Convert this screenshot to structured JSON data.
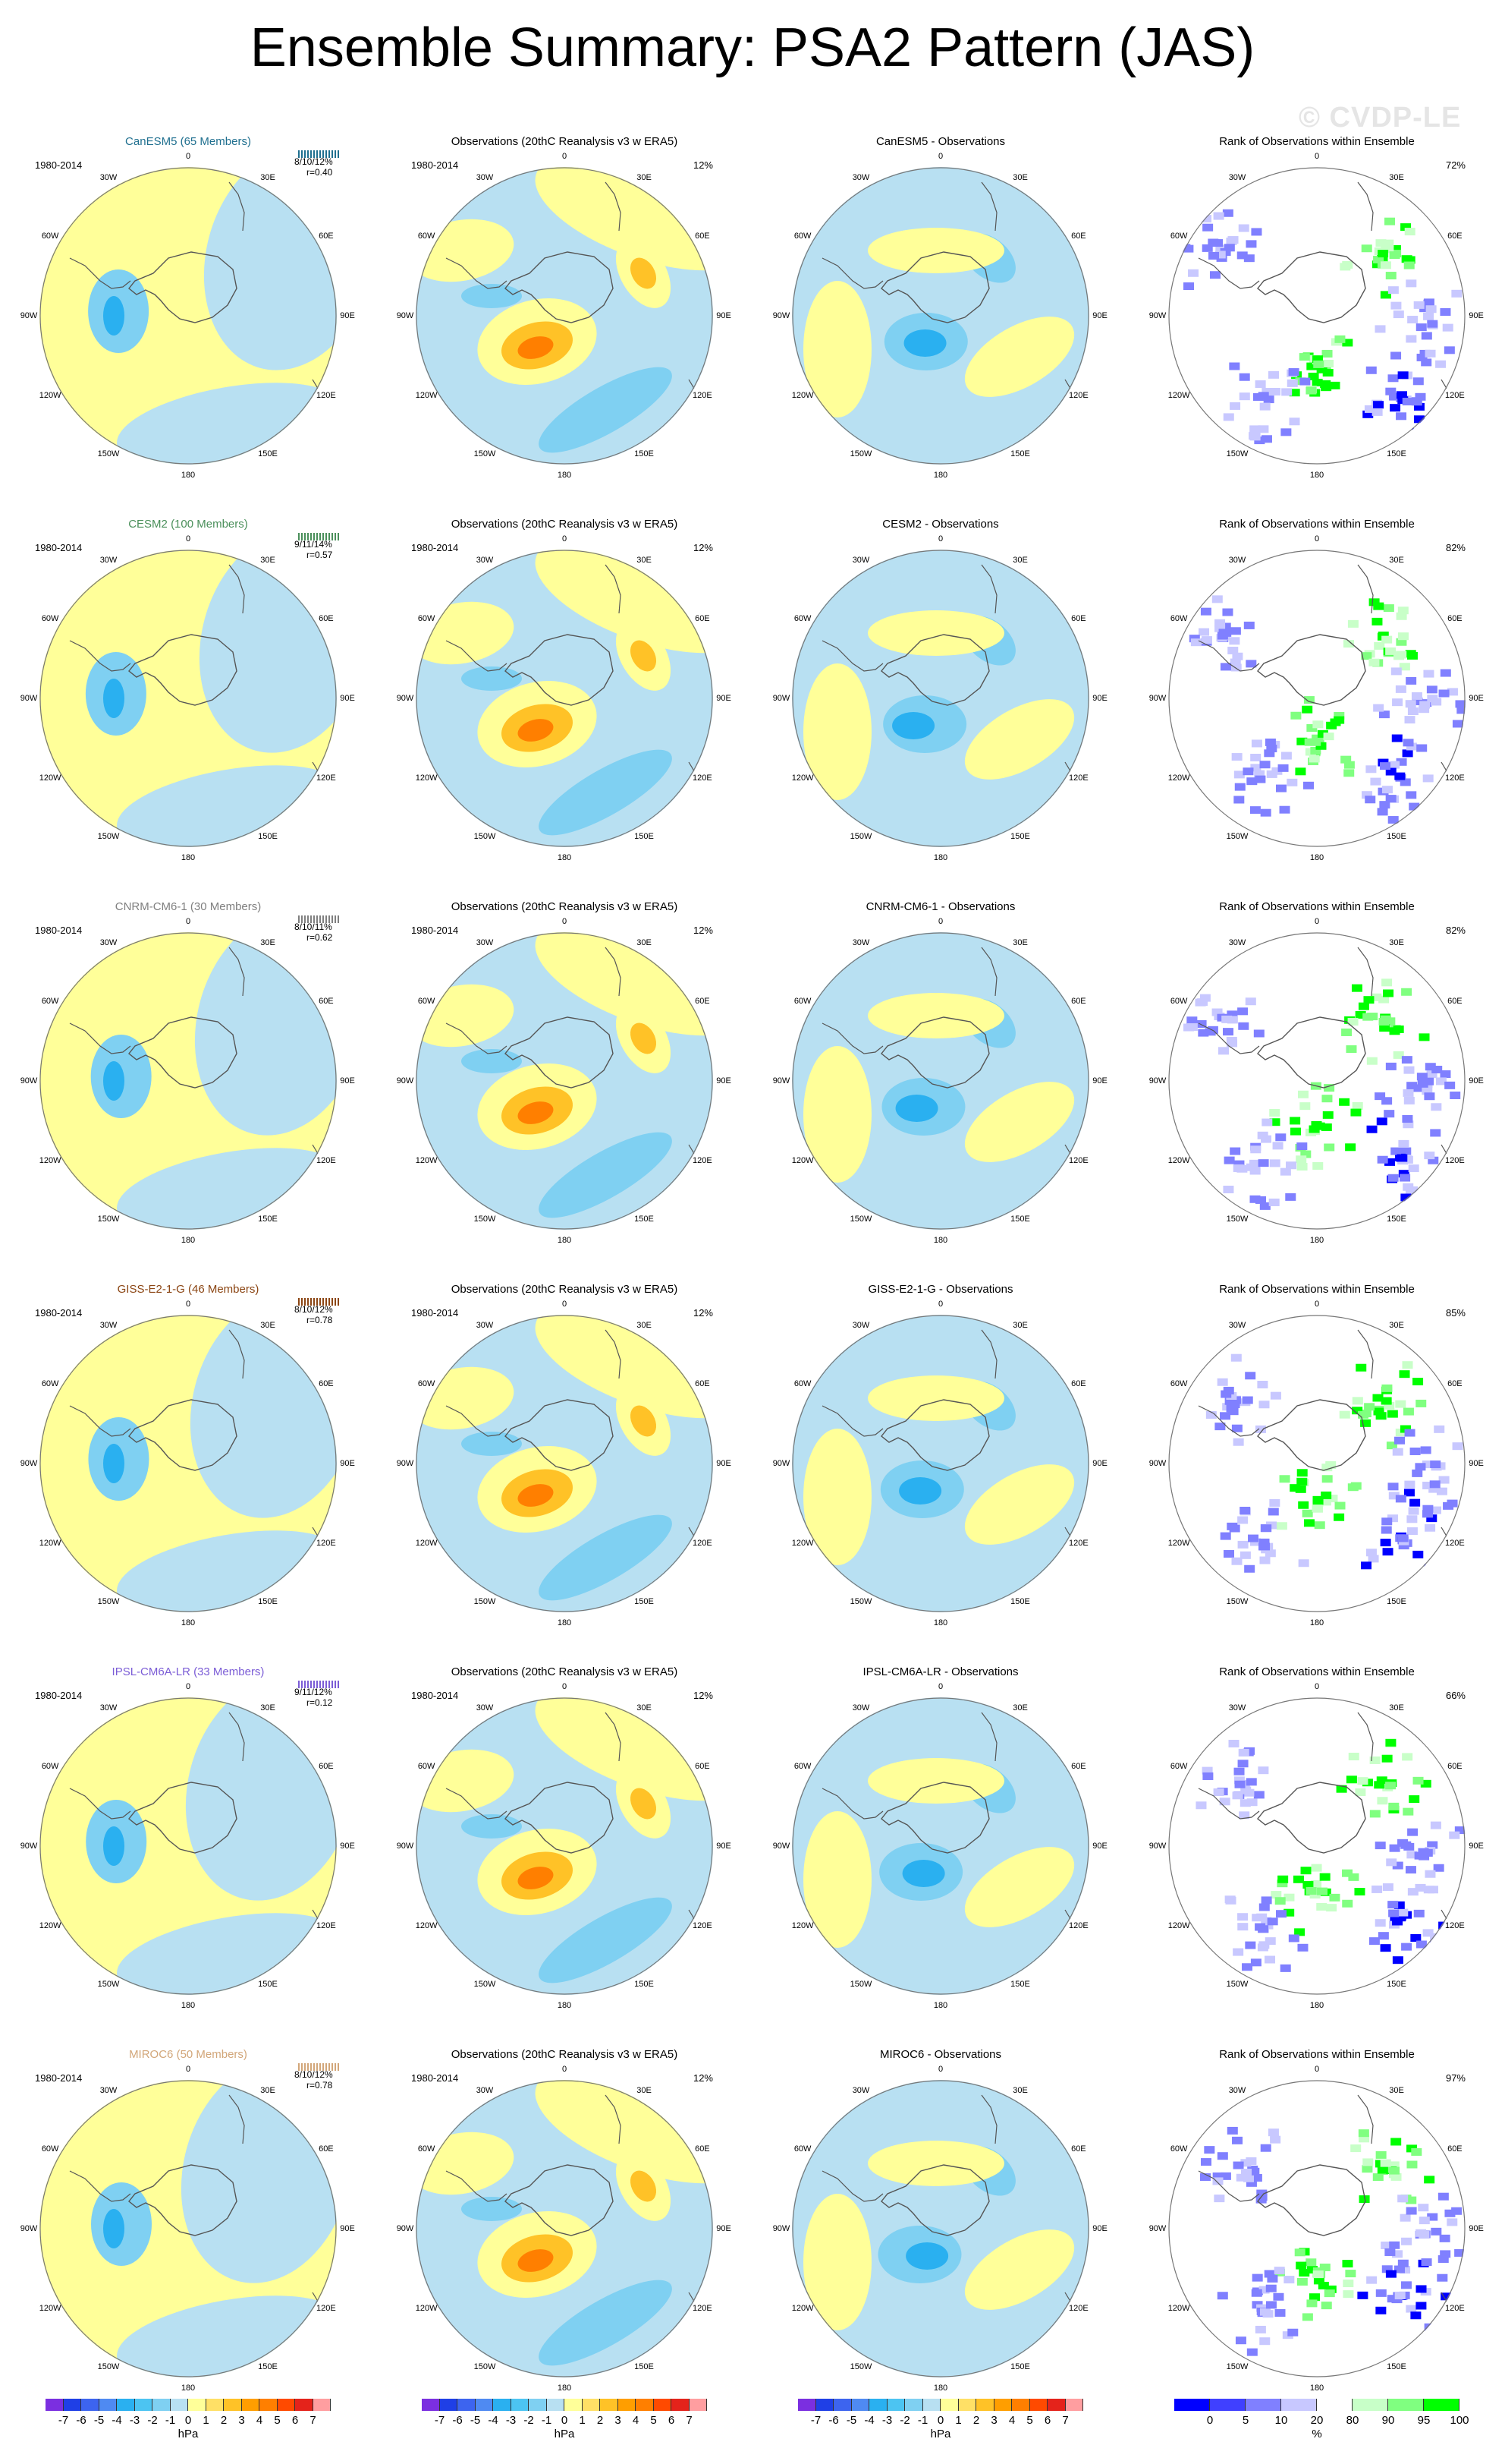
{
  "title": "Ensemble Summary: PSA2 Pattern (JAS)",
  "watermark": "© CVDP-LE",
  "period": "1980-2014",
  "obs_title": "Observations (20thC Reanalysis v3 w ERA5)",
  "rank_title": "Rank of Observations within Ensemble",
  "obs_pct": "12%",
  "longitude_labels": [
    "0",
    "30E",
    "60E",
    "90E",
    "120E",
    "150E",
    "180",
    "150W",
    "120W",
    "90W",
    "60W",
    "30W"
  ],
  "models": [
    {
      "label": "CanESM5 (65 Members)",
      "color": "#1f6f8f",
      "stats": "8/10/12%",
      "r": "r=0.40",
      "diff_title": "CanESM5 - Observations",
      "rank_pct": "72%"
    },
    {
      "label": "CESM2 (100 Members)",
      "color": "#4a8f5a",
      "stats": "9/11/14%",
      "r": "r=0.57",
      "diff_title": "CESM2 - Observations",
      "rank_pct": "82%"
    },
    {
      "label": "CNRM-CM6-1 (30 Members)",
      "color": "#7f7f7f",
      "stats": "8/10/11%",
      "r": "r=0.62",
      "diff_title": "CNRM-CM6-1 - Observations",
      "rank_pct": "82%"
    },
    {
      "label": "GISS-E2-1-G (46 Members)",
      "color": "#8b4513",
      "stats": "8/10/12%",
      "r": "r=0.78",
      "diff_title": "GISS-E2-1-G - Observations",
      "rank_pct": "85%"
    },
    {
      "label": "IPSL-CM6A-LR (33 Members)",
      "color": "#7b5cd6",
      "stats": "9/11/12%",
      "r": "r=0.12",
      "diff_title": "IPSL-CM6A-LR - Observations",
      "rank_pct": "66%"
    },
    {
      "label": "MIROC6 (50 Members)",
      "color": "#d2a679",
      "stats": "8/10/12%",
      "r": "r=0.78",
      "diff_title": "MIROC6 - Observations",
      "rank_pct": "97%"
    }
  ],
  "colorbar_hpa": {
    "ticks": [
      "-7",
      "-6",
      "-5",
      "-4",
      "-3",
      "-2",
      "-1",
      "0",
      "1",
      "2",
      "3",
      "4",
      "5",
      "6",
      "7"
    ],
    "unit": "hPa",
    "colors": [
      "#7b2fe0",
      "#1f3fe6",
      "#3d64ef",
      "#4f8af2",
      "#2ab0f0",
      "#4cc4f2",
      "#7fd0f2",
      "#b8e0f2",
      "#ffff99",
      "#ffe066",
      "#ffc227",
      "#ff9e00",
      "#ff7f00",
      "#ff4a00",
      "#e4231b",
      "#ff9ea0"
    ]
  },
  "colorbar_rank": {
    "ticks": [
      "0",
      "5",
      "10",
      "20",
      "80",
      "90",
      "95",
      "100"
    ],
    "unit": "%",
    "colors": [
      "#0000ff",
      "#4040ff",
      "#8080ff",
      "#c8c8ff",
      "#ffffff",
      "#c8ffc8",
      "#80ff80",
      "#00ff00"
    ]
  },
  "map_colors": {
    "ocean_base": "#b8e0f2",
    "positive": "#ffff99",
    "positive_strong": "#ffc227",
    "positive_max": "#ff7f00",
    "negative": "#7fd0f2",
    "negative_strong": "#2ab0f0"
  }
}
